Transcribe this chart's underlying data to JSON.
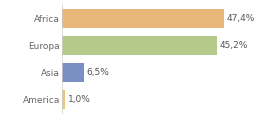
{
  "categories": [
    "America",
    "Asia",
    "Europa",
    "Africa"
  ],
  "values": [
    1.0,
    6.5,
    45.2,
    47.4
  ],
  "labels": [
    "1,0%",
    "6,5%",
    "45,2%",
    "47,4%"
  ],
  "bar_colors": [
    "#e8c87a",
    "#7b8fc4",
    "#b5c98a",
    "#e8b87a"
  ],
  "xlim": [
    0,
    62
  ],
  "background_color": "#ffffff",
  "label_fontsize": 6.5,
  "tick_fontsize": 6.5,
  "bar_height": 0.72
}
